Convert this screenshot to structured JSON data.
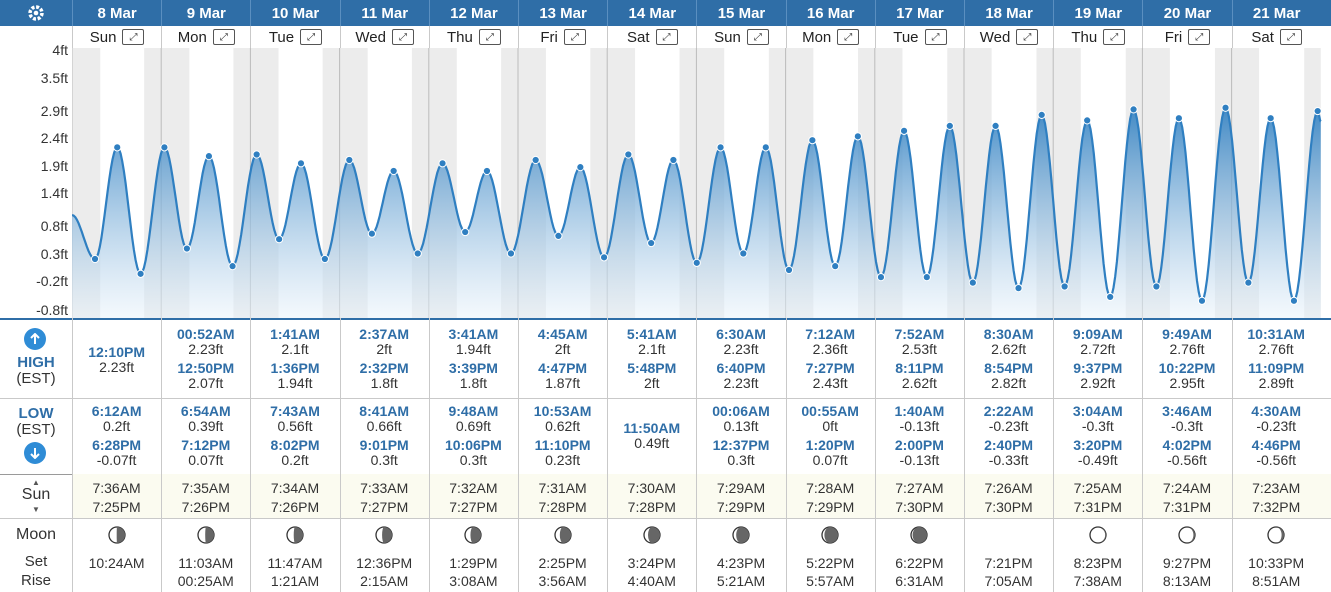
{
  "y_axis": {
    "labels": [
      "4ft",
      "3.5ft",
      "2.9ft",
      "2.4ft",
      "1.9ft",
      "1.4ft",
      "0.8ft",
      "0.3ft",
      "-0.2ft",
      "-0.8ft"
    ]
  },
  "labels": {
    "high": "HIGH",
    "low": "LOW",
    "est": "(EST)",
    "sun": "Sun",
    "moon": "Moon",
    "set": "Set",
    "rise": "Rise"
  },
  "days": [
    {
      "date": "8 Mar",
      "dow": "Sun",
      "highs": [
        {
          "time": "12:10PM",
          "h": "2.23ft"
        }
      ],
      "lows": [
        {
          "time": "6:12AM",
          "h": "0.2ft"
        },
        {
          "time": "6:28PM",
          "h": "-0.07ft"
        }
      ],
      "sunrise": "7:36AM",
      "sunset": "7:25PM",
      "moon_phase": 0.52,
      "moon_set": "10:24AM",
      "moon_rise": ""
    },
    {
      "date": "9 Mar",
      "dow": "Mon",
      "highs": [
        {
          "time": "00:52AM",
          "h": "2.23ft"
        },
        {
          "time": "12:50PM",
          "h": "2.07ft"
        }
      ],
      "lows": [
        {
          "time": "6:54AM",
          "h": "0.39ft"
        },
        {
          "time": "7:12PM",
          "h": "0.07ft"
        }
      ],
      "sunrise": "7:35AM",
      "sunset": "7:26PM",
      "moon_phase": 0.55,
      "moon_set": "11:03AM",
      "moon_rise": "00:25AM"
    },
    {
      "date": "10 Mar",
      "dow": "Tue",
      "highs": [
        {
          "time": "1:41AM",
          "h": "2.1ft"
        },
        {
          "time": "1:36PM",
          "h": "1.94ft"
        }
      ],
      "lows": [
        {
          "time": "7:43AM",
          "h": "0.56ft"
        },
        {
          "time": "8:02PM",
          "h": "0.2ft"
        }
      ],
      "sunrise": "7:34AM",
      "sunset": "7:26PM",
      "moon_phase": 0.58,
      "moon_set": "11:47AM",
      "moon_rise": "1:21AM"
    },
    {
      "date": "11 Mar",
      "dow": "Wed",
      "highs": [
        {
          "time": "2:37AM",
          "h": "2ft"
        },
        {
          "time": "2:32PM",
          "h": "1.8ft"
        }
      ],
      "lows": [
        {
          "time": "8:41AM",
          "h": "0.66ft"
        },
        {
          "time": "9:01PM",
          "h": "0.3ft"
        }
      ],
      "sunrise": "7:33AM",
      "sunset": "7:27PM",
      "moon_phase": 0.62,
      "moon_set": "12:36PM",
      "moon_rise": "2:15AM"
    },
    {
      "date": "12 Mar",
      "dow": "Thu",
      "highs": [
        {
          "time": "3:41AM",
          "h": "1.94ft"
        },
        {
          "time": "3:39PM",
          "h": "1.8ft"
        }
      ],
      "lows": [
        {
          "time": "9:48AM",
          "h": "0.69ft"
        },
        {
          "time": "10:06PM",
          "h": "0.3ft"
        }
      ],
      "sunrise": "7:32AM",
      "sunset": "7:27PM",
      "moon_phase": 0.66,
      "moon_set": "1:29PM",
      "moon_rise": "3:08AM"
    },
    {
      "date": "13 Mar",
      "dow": "Fri",
      "highs": [
        {
          "time": "4:45AM",
          "h": "2ft"
        },
        {
          "time": "4:47PM",
          "h": "1.87ft"
        }
      ],
      "lows": [
        {
          "time": "10:53AM",
          "h": "0.62ft"
        },
        {
          "time": "11:10PM",
          "h": "0.23ft"
        }
      ],
      "sunrise": "7:31AM",
      "sunset": "7:28PM",
      "moon_phase": 0.7,
      "moon_set": "2:25PM",
      "moon_rise": "3:56AM"
    },
    {
      "date": "14 Mar",
      "dow": "Sat",
      "highs": [
        {
          "time": "5:41AM",
          "h": "2.1ft"
        },
        {
          "time": "5:48PM",
          "h": "2ft"
        }
      ],
      "lows": [
        {
          "time": "11:50AM",
          "h": "0.49ft"
        }
      ],
      "sunrise": "7:30AM",
      "sunset": "7:28PM",
      "moon_phase": 0.75,
      "moon_set": "3:24PM",
      "moon_rise": "4:40AM"
    },
    {
      "date": "15 Mar",
      "dow": "Sun",
      "highs": [
        {
          "time": "6:30AM",
          "h": "2.23ft"
        },
        {
          "time": "6:40PM",
          "h": "2.23ft"
        }
      ],
      "lows": [
        {
          "time": "00:06AM",
          "h": "0.13ft"
        },
        {
          "time": "12:37PM",
          "h": "0.3ft"
        }
      ],
      "sunrise": "7:29AM",
      "sunset": "7:29PM",
      "moon_phase": 0.8,
      "moon_set": "4:23PM",
      "moon_rise": "5:21AM"
    },
    {
      "date": "16 Mar",
      "dow": "Mon",
      "highs": [
        {
          "time": "7:12AM",
          "h": "2.36ft"
        },
        {
          "time": "7:27PM",
          "h": "2.43ft"
        }
      ],
      "lows": [
        {
          "time": "00:55AM",
          "h": "0ft"
        },
        {
          "time": "1:20PM",
          "h": "0.07ft"
        }
      ],
      "sunrise": "7:28AM",
      "sunset": "7:29PM",
      "moon_phase": 0.85,
      "moon_set": "5:22PM",
      "moon_rise": "5:57AM"
    },
    {
      "date": "17 Mar",
      "dow": "Tue",
      "highs": [
        {
          "time": "7:52AM",
          "h": "2.53ft"
        },
        {
          "time": "8:11PM",
          "h": "2.62ft"
        }
      ],
      "lows": [
        {
          "time": "1:40AM",
          "h": "-0.13ft"
        },
        {
          "time": "2:00PM",
          "h": "-0.13ft"
        }
      ],
      "sunrise": "7:27AM",
      "sunset": "7:30PM",
      "moon_phase": 0.9,
      "moon_set": "6:22PM",
      "moon_rise": "6:31AM"
    },
    {
      "date": "18 Mar",
      "dow": "Wed",
      "highs": [
        {
          "time": "8:30AM",
          "h": "2.62ft"
        },
        {
          "time": "8:54PM",
          "h": "2.82ft"
        }
      ],
      "lows": [
        {
          "time": "2:22AM",
          "h": "-0.23ft"
        },
        {
          "time": "2:40PM",
          "h": "-0.33ft"
        }
      ],
      "sunrise": "7:26AM",
      "sunset": "7:30PM",
      "moon_phase": null,
      "moon_set": "7:21PM",
      "moon_rise": "7:05AM"
    },
    {
      "date": "19 Mar",
      "dow": "Thu",
      "highs": [
        {
          "time": "9:09AM",
          "h": "2.72ft"
        },
        {
          "time": "9:37PM",
          "h": "2.92ft"
        }
      ],
      "lows": [
        {
          "time": "3:04AM",
          "h": "-0.3ft"
        },
        {
          "time": "3:20PM",
          "h": "-0.49ft"
        }
      ],
      "sunrise": "7:25AM",
      "sunset": "7:31PM",
      "moon_phase": 0.05,
      "moon_set": "8:23PM",
      "moon_rise": "7:38AM"
    },
    {
      "date": "20 Mar",
      "dow": "Fri",
      "highs": [
        {
          "time": "9:49AM",
          "h": "2.76ft"
        },
        {
          "time": "10:22PM",
          "h": "2.95ft"
        }
      ],
      "lows": [
        {
          "time": "3:46AM",
          "h": "-0.3ft"
        },
        {
          "time": "4:02PM",
          "h": "-0.56ft"
        }
      ],
      "sunrise": "7:24AM",
      "sunset": "7:31PM",
      "moon_phase": 0.1,
      "moon_set": "9:27PM",
      "moon_rise": "8:13AM"
    },
    {
      "date": "21 Mar",
      "dow": "Sat",
      "highs": [
        {
          "time": "10:31AM",
          "h": "2.76ft"
        },
        {
          "time": "11:09PM",
          "h": "2.89ft"
        }
      ],
      "lows": [
        {
          "time": "4:30AM",
          "h": "-0.23ft"
        },
        {
          "time": "4:46PM",
          "h": "-0.56ft"
        }
      ],
      "sunrise": "7:23AM",
      "sunset": "7:32PM",
      "moon_phase": 0.15,
      "moon_set": "10:33PM",
      "moon_rise": "8:51AM"
    }
  ],
  "chart_data": {
    "type": "area",
    "ylim": [
      -0.8,
      4
    ],
    "y_ticks": [
      4,
      3.5,
      2.9,
      2.4,
      1.9,
      1.4,
      0.8,
      0.3,
      -0.2,
      -0.8
    ],
    "x_unit": "day index (0 = 8 Mar 00:00)",
    "points": [
      [
        0.0,
        1.0
      ],
      [
        0.258,
        0.2
      ],
      [
        0.507,
        2.23
      ],
      [
        0.769,
        -0.07
      ],
      [
        1.036,
        2.23
      ],
      [
        1.288,
        0.39
      ],
      [
        1.535,
        2.07
      ],
      [
        1.8,
        0.07
      ],
      [
        2.07,
        2.1
      ],
      [
        2.322,
        0.56
      ],
      [
        2.567,
        1.94
      ],
      [
        2.835,
        0.2
      ],
      [
        3.109,
        2.0
      ],
      [
        3.362,
        0.66
      ],
      [
        3.606,
        1.8
      ],
      [
        3.876,
        0.3
      ],
      [
        4.154,
        1.94
      ],
      [
        4.408,
        0.69
      ],
      [
        4.652,
        1.8
      ],
      [
        4.921,
        0.3
      ],
      [
        5.198,
        2.0
      ],
      [
        5.453,
        0.62
      ],
      [
        5.699,
        1.87
      ],
      [
        5.965,
        0.23
      ],
      [
        6.237,
        2.1
      ],
      [
        6.493,
        0.49
      ],
      [
        6.742,
        2.0
      ],
      [
        7.004,
        0.13
      ],
      [
        7.271,
        2.23
      ],
      [
        7.526,
        0.3
      ],
      [
        7.778,
        2.23
      ],
      [
        8.038,
        0.0
      ],
      [
        8.3,
        2.36
      ],
      [
        8.556,
        0.07
      ],
      [
        8.81,
        2.43
      ],
      [
        9.069,
        -0.13
      ],
      [
        9.328,
        2.53
      ],
      [
        9.583,
        -0.13
      ],
      [
        9.841,
        2.62
      ],
      [
        10.099,
        -0.23
      ],
      [
        10.354,
        2.62
      ],
      [
        10.611,
        -0.33
      ],
      [
        10.871,
        2.82
      ],
      [
        11.128,
        -0.3
      ],
      [
        11.381,
        2.72
      ],
      [
        11.639,
        -0.49
      ],
      [
        11.901,
        2.92
      ],
      [
        12.157,
        -0.3
      ],
      [
        12.409,
        2.76
      ],
      [
        12.668,
        -0.56
      ],
      [
        12.932,
        2.95
      ],
      [
        13.188,
        -0.23
      ],
      [
        13.438,
        2.76
      ],
      [
        13.699,
        -0.56
      ],
      [
        13.965,
        2.89
      ],
      [
        14.0,
        2.7
      ]
    ],
    "colors": {
      "line": "#2f7fc1",
      "fill_top": "#2f7fc1",
      "fill_bottom": "#e8f2fa"
    }
  }
}
